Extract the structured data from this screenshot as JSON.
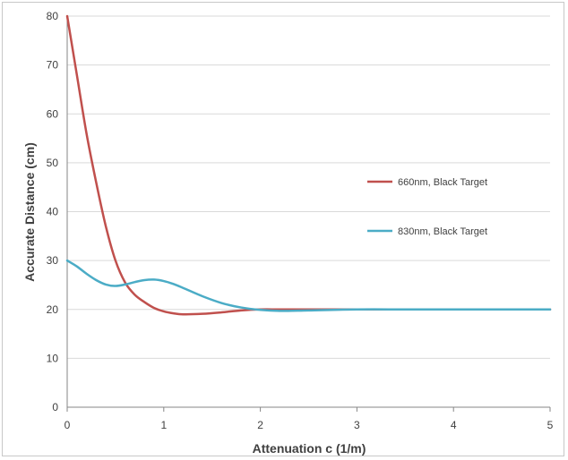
{
  "chart_data": {
    "type": "line",
    "title": "",
    "xlabel": "Attenuation c (1/m)",
    "ylabel": "Accurate Distance (cm)",
    "xlim": [
      0,
      5
    ],
    "ylim": [
      0,
      80
    ],
    "x_ticks": [
      "0",
      "1",
      "2",
      "3",
      "4",
      "5"
    ],
    "y_ticks": [
      "0",
      "10",
      "20",
      "30",
      "40",
      "50",
      "60",
      "70",
      "80"
    ],
    "grid": "horizontal",
    "legend_position": "right",
    "series": [
      {
        "name": "660nm, Black Target",
        "color": "#c0504d",
        "x": [
          0,
          0.1,
          0.2,
          0.3,
          0.4,
          0.5,
          0.6,
          0.7,
          0.8,
          0.9,
          1.0,
          1.1,
          1.2,
          1.4,
          1.6,
          1.8,
          2.0,
          2.2,
          2.5,
          3.0,
          3.5,
          4.0,
          4.5,
          5.0
        ],
        "y": [
          80,
          68,
          56,
          46,
          37,
          30,
          25.5,
          23,
          21.5,
          20.3,
          19.6,
          19.2,
          19.0,
          19.1,
          19.4,
          19.8,
          20.0,
          20.0,
          20.0,
          20.0,
          20.0,
          20.0,
          20.0,
          20.0
        ]
      },
      {
        "name": "830nm, Black Target",
        "color": "#4bacc6",
        "x": [
          0,
          0.1,
          0.2,
          0.3,
          0.4,
          0.5,
          0.6,
          0.7,
          0.8,
          0.9,
          1.0,
          1.1,
          1.2,
          1.4,
          1.6,
          1.8,
          2.0,
          2.2,
          2.5,
          3.0,
          3.5,
          4.0,
          4.5,
          5.0
        ],
        "y": [
          30,
          28.8,
          27.3,
          26.0,
          25.1,
          24.8,
          25.1,
          25.6,
          26.0,
          26.1,
          25.8,
          25.2,
          24.4,
          22.7,
          21.3,
          20.4,
          19.9,
          19.7,
          19.8,
          20.0,
          20.0,
          20.0,
          20.0,
          20.0
        ]
      }
    ]
  }
}
